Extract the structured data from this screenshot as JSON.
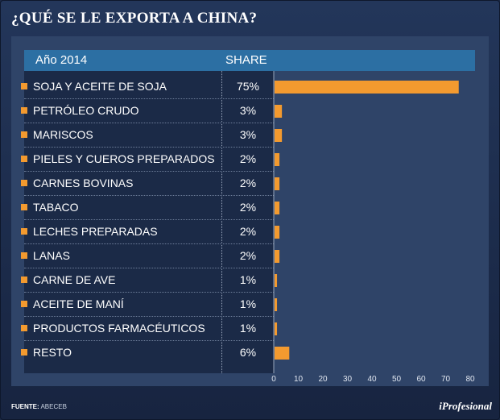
{
  "title": "¿QUÉ SE LE EXPORTA A CHINA?",
  "header": {
    "year_label": "Año 2014",
    "share_label": "SHARE"
  },
  "chart_data": {
    "type": "bar",
    "orientation": "horizontal",
    "title": "¿QUÉ SE LE EXPORTA A CHINA?",
    "categories": [
      "SOJA Y ACEITE DE SOJA",
      "PETRÓLEO CRUDO",
      "MARISCOS",
      "PIELES Y CUEROS PREPARADOS",
      "CARNES BOVINAS",
      "TABACO",
      "LECHES PREPARADAS",
      "LANAS",
      "CARNE DE AVE",
      "ACEITE DE MANÍ",
      "PRODUCTOS FARMACÉUTICOS",
      "RESTO"
    ],
    "values": [
      75,
      3,
      3,
      2,
      2,
      2,
      2,
      2,
      1,
      1,
      1,
      6
    ],
    "value_labels": [
      "75%",
      "3%",
      "3%",
      "2%",
      "2%",
      "2%",
      "2%",
      "2%",
      "1%",
      "1%",
      "1%",
      "6%"
    ],
    "xlim": [
      0,
      80
    ],
    "xticks": [
      0,
      10,
      20,
      30,
      40,
      50,
      60,
      70,
      80
    ],
    "bar_color": "#f39a2f",
    "grid": false
  },
  "footer": {
    "source_label": "FUENTE:",
    "source_value": "ABECEB",
    "brand": "iProfesional"
  }
}
